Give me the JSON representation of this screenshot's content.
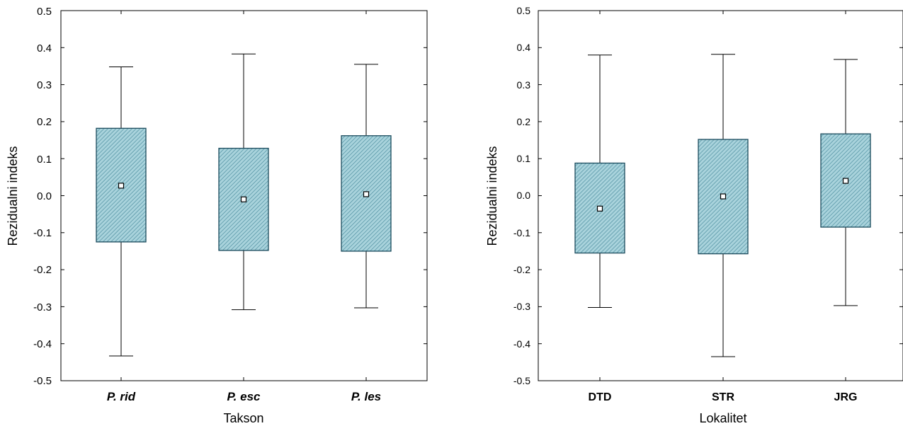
{
  "chart_data": [
    {
      "type": "box",
      "xlabel": "Takson",
      "ylabel": "Rezidualni indeks",
      "ylim": [
        -0.5,
        0.5
      ],
      "yticks": [
        "0.5",
        "0.4",
        "0.3",
        "0.2",
        "0.1",
        "0.0",
        "-0.1",
        "-0.2",
        "-0.3",
        "-0.4",
        "-0.5"
      ],
      "categories": [
        "P. rid",
        "P. esc",
        "P. les"
      ],
      "category_style": "bold-italic",
      "boxes": [
        {
          "mean": 0.027,
          "box_low": -0.125,
          "box_high": 0.182,
          "whisker_low": -0.433,
          "whisker_high": 0.348
        },
        {
          "mean": -0.01,
          "box_low": -0.148,
          "box_high": 0.128,
          "whisker_low": -0.308,
          "whisker_high": 0.383
        },
        {
          "mean": 0.004,
          "box_low": -0.15,
          "box_high": 0.162,
          "whisker_low": -0.303,
          "whisker_high": 0.355
        }
      ],
      "box_color": "#a9d3dc",
      "edge_color": "#1a4a5c",
      "grid": false
    },
    {
      "type": "box",
      "xlabel": "Lokalitet",
      "ylabel": "Rezidualni indeks",
      "ylim": [
        -0.5,
        0.5
      ],
      "yticks": [
        "0.5",
        "0.4",
        "0.3",
        "0.2",
        "0.1",
        "0.0",
        "-0.1",
        "-0.2",
        "-0.3",
        "-0.4",
        "-0.5"
      ],
      "categories": [
        "DTD",
        "STR",
        "JRG"
      ],
      "category_style": "bold",
      "boxes": [
        {
          "mean": -0.035,
          "box_low": -0.155,
          "box_high": 0.088,
          "whisker_low": -0.302,
          "whisker_high": 0.38
        },
        {
          "mean": -0.002,
          "box_low": -0.157,
          "box_high": 0.152,
          "whisker_low": -0.435,
          "whisker_high": 0.382
        },
        {
          "mean": 0.04,
          "box_low": -0.085,
          "box_high": 0.167,
          "whisker_low": -0.297,
          "whisker_high": 0.368
        }
      ],
      "box_color": "#a9d3dc",
      "edge_color": "#1a4a5c",
      "grid": false
    }
  ]
}
